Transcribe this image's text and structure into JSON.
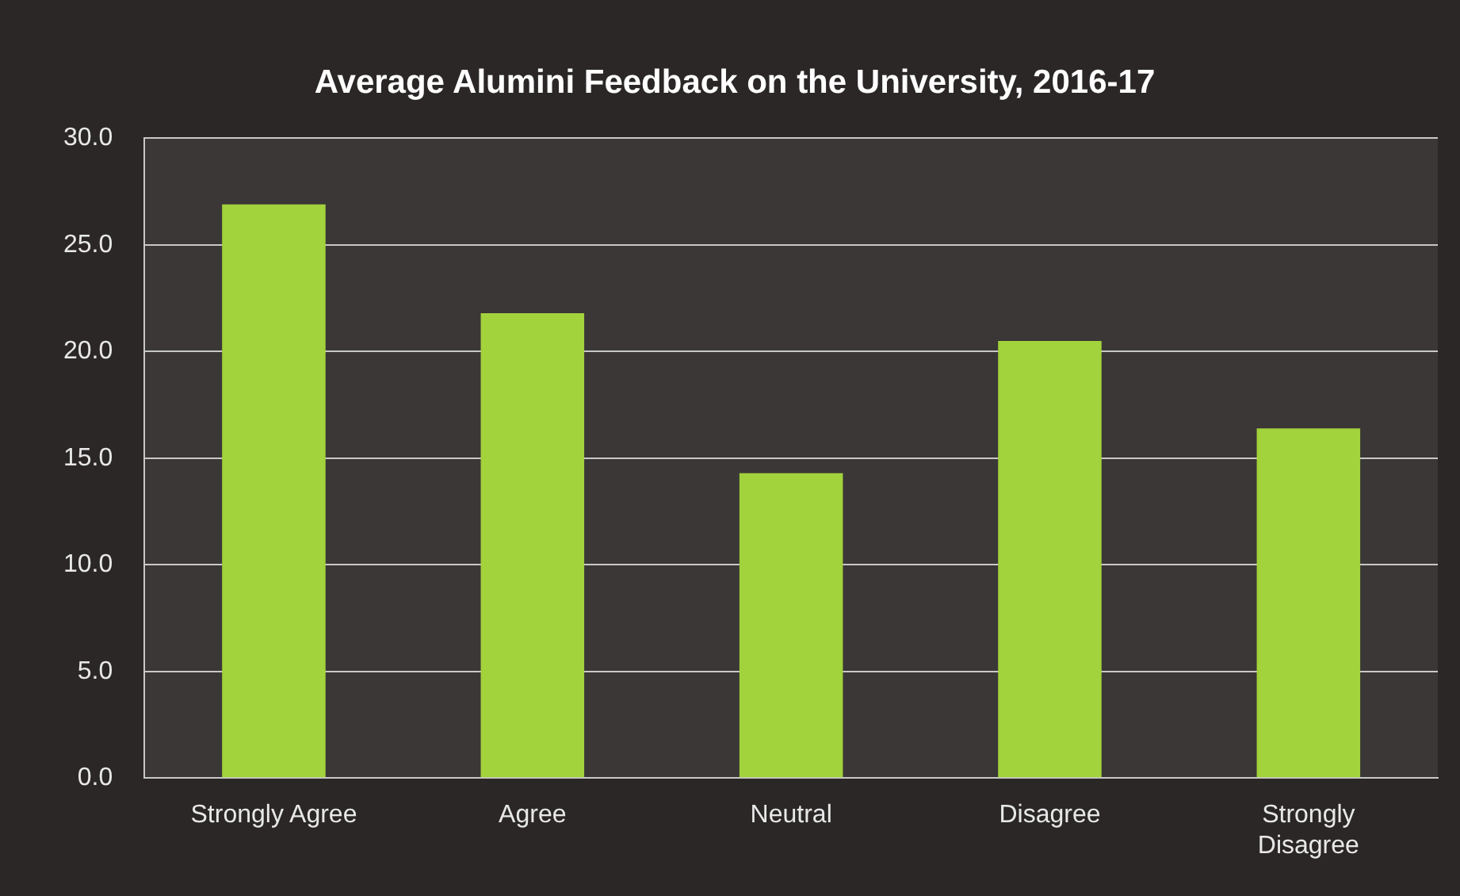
{
  "chart_data": {
    "type": "bar",
    "title": "Average Alumini Feedback on the University, 2016-17",
    "categories": [
      "Strongly Agree",
      "Agree",
      "Neutral",
      "Disagree",
      "Strongly Disagree"
    ],
    "values": [
      26.9,
      21.8,
      14.3,
      20.5,
      16.4
    ],
    "color": "#a2d23c",
    "ylim": [
      0,
      30
    ],
    "yticks": [
      {
        "value": 0,
        "label": "0.0"
      },
      {
        "value": 5,
        "label": "5.0"
      },
      {
        "value": 10,
        "label": "10.0"
      },
      {
        "value": 15,
        "label": "15.0"
      },
      {
        "value": 20,
        "label": "20.0"
      },
      {
        "value": 25,
        "label": "25.0"
      },
      {
        "value": 30,
        "label": "30.0"
      }
    ],
    "grid": "y",
    "legend": false
  }
}
